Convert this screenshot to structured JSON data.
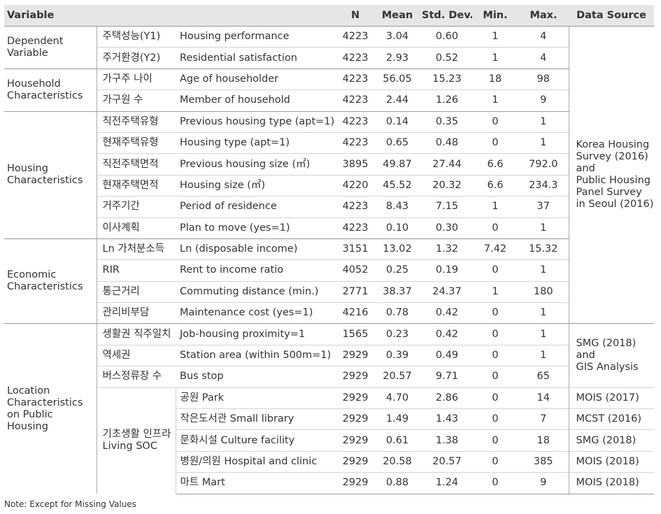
{
  "header": [
    "Variable",
    "N",
    "Mean",
    "Std. Dev.",
    "Min.",
    "Max.",
    "Data Source"
  ],
  "groups": [
    {
      "label": "Dependent\nVariable",
      "rows": [
        [
          "주택성능(Y1)",
          "Housing performance",
          "4223",
          "3.04",
          "0.60",
          "1",
          "4"
        ],
        [
          "주거환경(Y2)",
          "Residential satisfaction",
          "4223",
          "2.93",
          "0.52",
          "1",
          "4"
        ]
      ]
    },
    {
      "label": "Household\nCharacteristics",
      "rows": [
        [
          "가구주 나이",
          "Age of householder",
          "4223",
          "56.05",
          "15.23",
          "18",
          "98"
        ],
        [
          "가구원 수",
          "Member of household",
          "4223",
          "2.44",
          "1.26",
          "1",
          "9"
        ]
      ]
    },
    {
      "label": "Housing\nCharacteristics",
      "rows": [
        [
          "직전주택유형",
          "Previous housing type (apt=1)",
          "4223",
          "0.14",
          "0.35",
          "0",
          "1"
        ],
        [
          "현재주택유형",
          "Housing type (apt=1)",
          "4223",
          "0.65",
          "0.48",
          "0",
          "1"
        ],
        [
          "직전주택면적",
          "Previous housing size (㎡)",
          "3895",
          "49.87",
          "27.44",
          "6.6",
          "792.0"
        ],
        [
          "현재주택면적",
          "Housing size (㎡)",
          "4220",
          "45.52",
          "20.32",
          "6.6",
          "234.3"
        ],
        [
          "거주기간",
          "Period of residence",
          "4223",
          "8.43",
          "7.15",
          "1",
          "37"
        ],
        [
          "이사계획",
          "Plan to move (yes=1)",
          "4223",
          "0.10",
          "0.30",
          "0",
          "1"
        ]
      ]
    },
    {
      "label": "Economic\nCharacteristics",
      "rows": [
        [
          "Ln 가처분소득",
          "Ln (disposable income)",
          "3151",
          "13.02",
          "1.32",
          "7.42",
          "15.32"
        ],
        [
          "RIR",
          "Rent to income ratio",
          "4052",
          "0.25",
          "0.19",
          "0",
          "1"
        ],
        [
          "통근거리",
          "Commuting distance (min.)",
          "2771",
          "38.37",
          "24.37",
          "1",
          "180"
        ],
        [
          "관리비부담",
          "Maintenance cost (yes=1)",
          "4216",
          "0.78",
          "0.42",
          "0",
          "1"
        ]
      ]
    },
    {
      "label": "Location\nCharacteristics\non Public\nHousing",
      "sublabel": "기초생활 인프라\nLiving SOC",
      "rows": [
        [
          "생활권 직주일치",
          "Job-housing proximity=1",
          "1565",
          "0.23",
          "0.42",
          "0",
          "1"
        ],
        [
          "역세권",
          "Station area (within 500m=1)",
          "2929",
          "0.39",
          "0.49",
          "0",
          "1"
        ],
        [
          "버스정류장 수",
          "Bus stop",
          "2929",
          "20.57",
          "9.71",
          "0",
          "65"
        ],
        [
          "공원 Park",
          "2929",
          "4.70",
          "2.86",
          "0",
          "14"
        ],
        [
          "작은도서관 Small library",
          "2929",
          "1.49",
          "1.43",
          "0",
          "7"
        ],
        [
          "문화시설 Culture facility",
          "2929",
          "0.61",
          "1.38",
          "0",
          "18"
        ],
        [
          "병원/의원 Hospital and clinic",
          "2929",
          "20.58",
          "20.57",
          "0",
          "385"
        ],
        [
          "마트 Mart",
          "2929",
          "0.88",
          "1.24",
          "0",
          "9"
        ]
      ]
    }
  ],
  "sources": [
    "Korea Housing\nSurvey (2016)\nand\nPublic Housing\nPanel Survey\nin Seoul (2016)",
    "SMG (2018)\nand\nGIS Analysis",
    "MOIS (2017)",
    "MCST (2016)",
    "SMG (2018)",
    "MOIS (2018)",
    "MOIS (2018)"
  ],
  "note": "Note: Except for Missing Values"
}
